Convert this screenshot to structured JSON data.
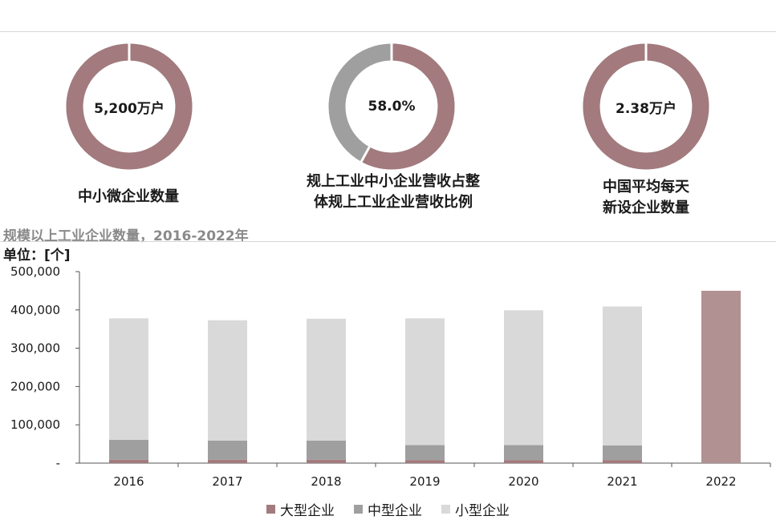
{
  "kpis": [
    {
      "value": "5,200万户",
      "caption_lines": [
        "中小微企业数量"
      ],
      "fraction": 1.0
    },
    {
      "value": "58.0%",
      "caption_lines": [
        "规上工业中小企业营收占整",
        "体规上工业企业营收比例"
      ],
      "fraction": 0.58
    },
    {
      "value": "2.38万户",
      "caption_lines": [
        "中国平均每天",
        "新设企业数量"
      ],
      "fraction": 1.0
    }
  ],
  "colors": {
    "large": "#a37a7d",
    "medium": "#9f9f9f",
    "small": "#d9d9d9",
    "donut_main": "#a37a7d",
    "donut_rest": "#9f9f9f",
    "bar_2022": "#b29193"
  },
  "chart_title": "规模以上工业企业数量，2016-2022年",
  "unit_label": "单位：[个]",
  "chart_data": {
    "type": "bar",
    "stacked": true,
    "categories": [
      "2016",
      "2017",
      "2018",
      "2019",
      "2020",
      "2021",
      "2022"
    ],
    "series": [
      {
        "name": "大型企业",
        "values": [
          9000,
          9000,
          9000,
          8000,
          8000,
          8000,
          450000
        ]
      },
      {
        "name": "中型企业",
        "values": [
          52000,
          50000,
          50000,
          39000,
          39000,
          38000,
          0
        ]
      },
      {
        "name": "小型企业",
        "values": [
          317000,
          314000,
          318000,
          331000,
          352000,
          363000,
          0
        ]
      }
    ],
    "ylim": [
      0,
      500000
    ],
    "yticks": [
      "-",
      "100,000",
      "200,000",
      "300,000",
      "400,000",
      "500,000"
    ],
    "legend": [
      "大型企业",
      "中型企业",
      "小型企业"
    ],
    "legend_position": "bottom",
    "grid": false
  }
}
